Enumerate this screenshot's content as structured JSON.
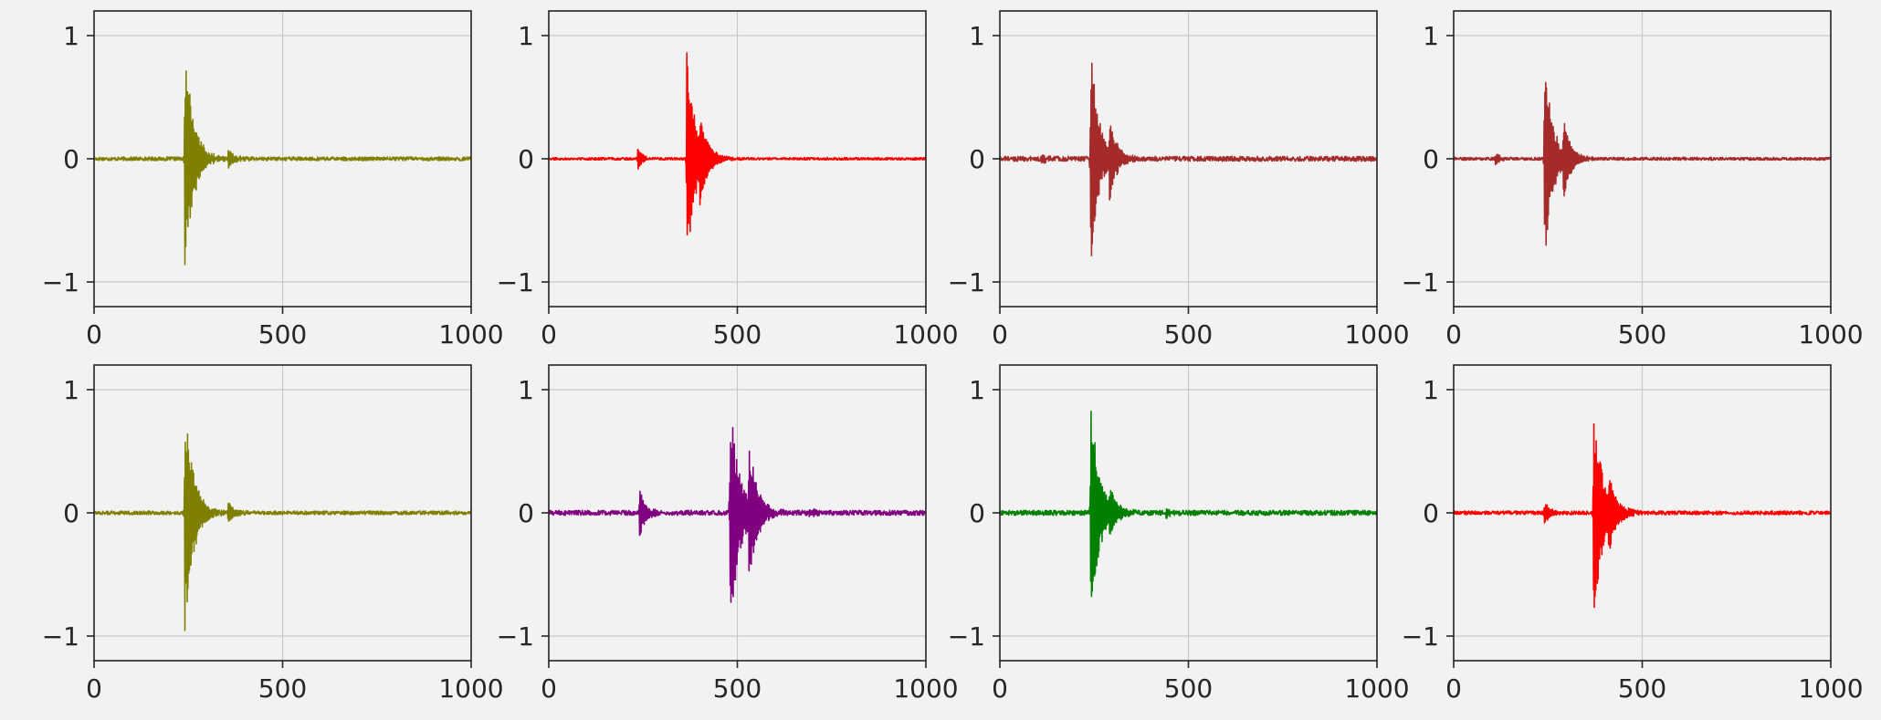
{
  "chart_data": [
    {
      "type": "line",
      "color": "#808000",
      "xlim": [
        0,
        1000
      ],
      "ylim": [
        -1.2,
        1.2
      ],
      "xticks": [
        "0",
        "500",
        "1000"
      ],
      "yticks": [
        "−1",
        "0",
        "1"
      ],
      "grid": true,
      "series": [
        {
          "noise": 0.015,
          "events": [
            {
              "onset": 240,
              "amp": 1.0,
              "decay": 22,
              "freq": 0.9
            },
            {
              "onset": 355,
              "amp": 0.09,
              "decay": 14,
              "freq": 0.7
            }
          ]
        }
      ]
    },
    {
      "type": "line",
      "color": "#ff0000",
      "xlim": [
        0,
        1000
      ],
      "ylim": [
        -1.2,
        1.2
      ],
      "xticks": [
        "0",
        "500",
        "1000"
      ],
      "yticks": [
        "−1",
        "0",
        "1"
      ],
      "grid": true,
      "series": [
        {
          "noise": 0.01,
          "events": [
            {
              "onset": 235,
              "amp": 0.1,
              "decay": 12,
              "freq": 0.7
            },
            {
              "onset": 365,
              "amp": 0.95,
              "decay": 22,
              "freq": 0.9
            },
            {
              "onset": 400,
              "amp": 0.25,
              "decay": 20,
              "freq": 0.8
            }
          ]
        }
      ]
    },
    {
      "type": "line",
      "color": "#a52a2a",
      "xlim": [
        0,
        1000
      ],
      "ylim": [
        -1.2,
        1.2
      ],
      "xticks": [
        "0",
        "500",
        "1000"
      ],
      "yticks": [
        "−1",
        "0",
        "1"
      ],
      "grid": true,
      "series": [
        {
          "noise": 0.02,
          "events": [
            {
              "onset": 110,
              "amp": 0.05,
              "decay": 12,
              "freq": 0.7
            },
            {
              "onset": 240,
              "amp": 1.0,
              "decay": 20,
              "freq": 0.9
            },
            {
              "onset": 290,
              "amp": 0.3,
              "decay": 18,
              "freq": 0.8
            }
          ]
        }
      ]
    },
    {
      "type": "line",
      "color": "#a52a2a",
      "xlim": [
        0,
        1000
      ],
      "ylim": [
        -1.2,
        1.2
      ],
      "xticks": [
        "0",
        "500",
        "1000"
      ],
      "yticks": [
        "−1",
        "0",
        "1"
      ],
      "grid": true,
      "series": [
        {
          "noise": 0.012,
          "events": [
            {
              "onset": 110,
              "amp": 0.05,
              "decay": 12,
              "freq": 0.7
            },
            {
              "onset": 240,
              "amp": 0.95,
              "decay": 20,
              "freq": 0.9
            },
            {
              "onset": 290,
              "amp": 0.3,
              "decay": 18,
              "freq": 0.8
            }
          ]
        }
      ]
    },
    {
      "type": "line",
      "color": "#808000",
      "xlim": [
        0,
        1000
      ],
      "ylim": [
        -1.2,
        1.2
      ],
      "xticks": [
        "0",
        "500",
        "1000"
      ],
      "yticks": [
        "−1",
        "0",
        "1"
      ],
      "grid": true,
      "series": [
        {
          "noise": 0.015,
          "events": [
            {
              "onset": 240,
              "amp": 1.0,
              "decay": 22,
              "freq": 0.9
            },
            {
              "onset": 355,
              "amp": 0.1,
              "decay": 14,
              "freq": 0.7
            }
          ]
        }
      ]
    },
    {
      "type": "line",
      "color": "#800080",
      "xlim": [
        0,
        1000
      ],
      "ylim": [
        -1.2,
        1.2
      ],
      "xticks": [
        "0",
        "500",
        "1000"
      ],
      "yticks": [
        "−1",
        "0",
        "1"
      ],
      "grid": true,
      "series": [
        {
          "noise": 0.02,
          "events": [
            {
              "onset": 240,
              "amp": 0.25,
              "decay": 14,
              "freq": 0.7
            },
            {
              "onset": 480,
              "amp": 1.0,
              "decay": 24,
              "freq": 0.9
            },
            {
              "onset": 530,
              "amp": 0.5,
              "decay": 22,
              "freq": 0.8
            },
            {
              "onset": 690,
              "amp": 0.04,
              "decay": 12,
              "freq": 0.7
            }
          ]
        }
      ]
    },
    {
      "type": "line",
      "color": "#008000",
      "xlim": [
        0,
        1000
      ],
      "ylim": [
        -1.2,
        1.2
      ],
      "xticks": [
        "0",
        "500",
        "1000"
      ],
      "yticks": [
        "−1",
        "0",
        "1"
      ],
      "grid": true,
      "series": [
        {
          "noise": 0.02,
          "events": [
            {
              "onset": 240,
              "amp": 1.0,
              "decay": 22,
              "freq": 0.9
            },
            {
              "onset": 290,
              "amp": 0.15,
              "decay": 16,
              "freq": 0.8
            },
            {
              "onset": 440,
              "amp": 0.05,
              "decay": 12,
              "freq": 0.7
            }
          ]
        }
      ]
    },
    {
      "type": "line",
      "color": "#ff0000",
      "xlim": [
        0,
        1000
      ],
      "ylim": [
        -1.2,
        1.2
      ],
      "xticks": [
        "0",
        "500",
        "1000"
      ],
      "yticks": [
        "−1",
        "0",
        "1"
      ],
      "grid": true,
      "series": [
        {
          "noise": 0.015,
          "events": [
            {
              "onset": 240,
              "amp": 0.12,
              "decay": 12,
              "freq": 0.7
            },
            {
              "onset": 370,
              "amp": 1.0,
              "decay": 22,
              "freq": 0.9
            },
            {
              "onset": 410,
              "amp": 0.2,
              "decay": 20,
              "freq": 0.8
            }
          ]
        }
      ]
    }
  ]
}
